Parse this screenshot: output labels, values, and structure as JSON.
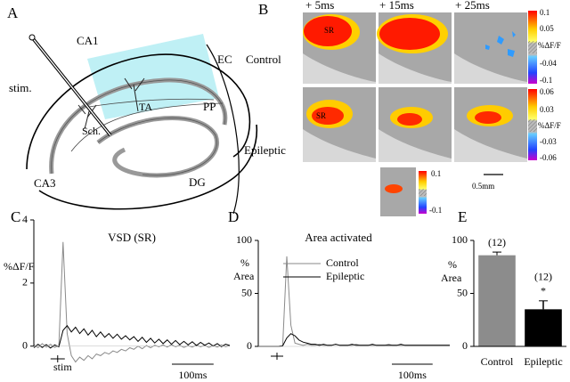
{
  "panel_a": {
    "letter": "A",
    "ca1": "CA1",
    "ec": "EC",
    "stim": "stim.",
    "sch": "Sch.",
    "ta": "TA",
    "pp": "PP",
    "ca3": "CA3",
    "dg": "DG"
  },
  "panel_b": {
    "letter": "B",
    "columns": [
      "+ 5ms",
      "+ 15ms",
      "+ 25ms"
    ],
    "rows": [
      "Control",
      "Epileptic"
    ],
    "region_label": "SR",
    "colorbar_control": [
      "0.1",
      "0.05",
      "%ΔF/F",
      "-0.04",
      "-0.1"
    ],
    "colorbar_epileptic": [
      "0.06",
      "0.03",
      "%ΔF/F",
      "-0.03",
      "-0.06"
    ],
    "colorbar_small": [
      "0.1",
      "-0.1"
    ],
    "scale_bar": "0.5mm"
  },
  "chart_data": [
    {
      "type": "line",
      "panel": "C",
      "title": "VSD (SR)",
      "y_label": "%ΔF/F",
      "stim_label": "stim",
      "scale_bar": {
        "label": "100ms",
        "length": 100
      },
      "xlim": [
        0,
        470
      ],
      "ylim": [
        -0.6,
        4
      ],
      "yticks": [
        0,
        2,
        4
      ],
      "x": [
        0,
        10,
        20,
        30,
        40,
        50,
        60,
        70,
        80,
        90,
        100,
        110,
        120,
        130,
        140,
        150,
        160,
        170,
        180,
        190,
        200,
        210,
        220,
        230,
        240,
        250,
        260,
        270,
        280,
        290,
        300,
        310,
        320,
        330,
        340,
        350,
        360,
        370,
        380,
        390,
        400,
        410,
        420,
        430,
        440,
        450,
        460,
        470
      ],
      "series": [
        {
          "name": "Control",
          "color": "#8a8a8a",
          "values": [
            0.05,
            -0.05,
            0.08,
            -0.03,
            0.06,
            -0.04,
            0.02,
            3.3,
            0.4,
            -0.3,
            -0.5,
            -0.35,
            -0.45,
            -0.3,
            -0.4,
            -0.25,
            -0.3,
            -0.2,
            -0.25,
            -0.15,
            -0.2,
            -0.1,
            -0.15,
            -0.05,
            -0.1,
            0,
            -0.08,
            0.02,
            -0.05,
            0.03,
            -0.02,
            0.04,
            -0.03,
            0.05,
            -0.02,
            0.03,
            -0.04,
            0.02,
            -0.03,
            0.04,
            -0.02,
            0.03,
            -0.04,
            0.02,
            -0.03,
            0.04,
            -0.02,
            0.02
          ]
        },
        {
          "name": "Epileptic",
          "color": "#000000",
          "values": [
            -0.05,
            0.06,
            -0.04,
            0.05,
            -0.06,
            0.04,
            -0.02,
            0.5,
            0.65,
            0.45,
            0.6,
            0.4,
            0.55,
            0.35,
            0.5,
            0.3,
            0.45,
            0.28,
            0.4,
            0.25,
            0.38,
            0.22,
            0.33,
            0.2,
            0.3,
            0.15,
            0.28,
            0.12,
            0.25,
            0.1,
            0.22,
            0.08,
            0.2,
            0.06,
            0.18,
            0.05,
            0.15,
            0.04,
            0.14,
            0.02,
            0.12,
            0.03,
            0.1,
            0,
            0.08,
            -0.02,
            0.06,
            0.02
          ]
        }
      ]
    },
    {
      "type": "line",
      "panel": "D",
      "title": "Area activated",
      "y_label_lines": [
        "%",
        "Area"
      ],
      "scale_bar": {
        "label": "100ms",
        "length": 100
      },
      "legend": true,
      "xlim": [
        0,
        470
      ],
      "ylim": [
        0,
        100
      ],
      "yticks": [
        0,
        50,
        100
      ],
      "x": [
        0,
        10,
        20,
        30,
        40,
        50,
        60,
        70,
        80,
        90,
        100,
        110,
        120,
        130,
        140,
        150,
        160,
        170,
        180,
        190,
        200,
        210,
        220,
        230,
        240,
        250,
        260,
        270,
        280,
        290,
        300,
        310,
        320,
        330,
        340,
        350,
        360,
        370,
        380,
        390,
        400,
        410,
        420,
        430,
        440,
        450,
        460,
        470
      ],
      "series": [
        {
          "name": "Control",
          "color": "#8a8a8a",
          "values": [
            0,
            0,
            0,
            0,
            0,
            0,
            0.5,
            85,
            20,
            3,
            2,
            1,
            2,
            1,
            1,
            2,
            1,
            1,
            1,
            2,
            1,
            1,
            1,
            1,
            2,
            1,
            1,
            1,
            1,
            1,
            1,
            1,
            2,
            1,
            1,
            1,
            1,
            1,
            1,
            1,
            1,
            1,
            1,
            1,
            1,
            1,
            1,
            1
          ]
        },
        {
          "name": "Epileptic",
          "color": "#000000",
          "values": [
            0,
            0,
            0,
            0,
            0,
            0,
            0.5,
            8,
            12,
            10,
            6,
            4,
            3,
            2,
            2,
            1,
            2,
            1,
            1,
            2,
            1,
            1,
            1,
            2,
            1,
            1,
            1,
            1,
            2,
            1,
            1,
            1,
            1,
            1,
            1,
            2,
            1,
            1,
            1,
            1,
            1,
            1,
            1,
            1,
            1,
            1,
            1,
            1
          ]
        }
      ]
    },
    {
      "type": "bar",
      "panel": "E",
      "y_label_lines": [
        "%",
        "Area"
      ],
      "categories": [
        "Control",
        "Epileptic"
      ],
      "values": [
        86,
        35
      ],
      "errors": [
        3,
        8
      ],
      "colors": [
        "#8c8c8c",
        "#000000"
      ],
      "n_labels": [
        "(12)",
        "(12)"
      ],
      "significance": [
        null,
        "*"
      ],
      "ylim": [
        0,
        100
      ],
      "yticks": [
        0,
        50,
        100
      ]
    }
  ]
}
